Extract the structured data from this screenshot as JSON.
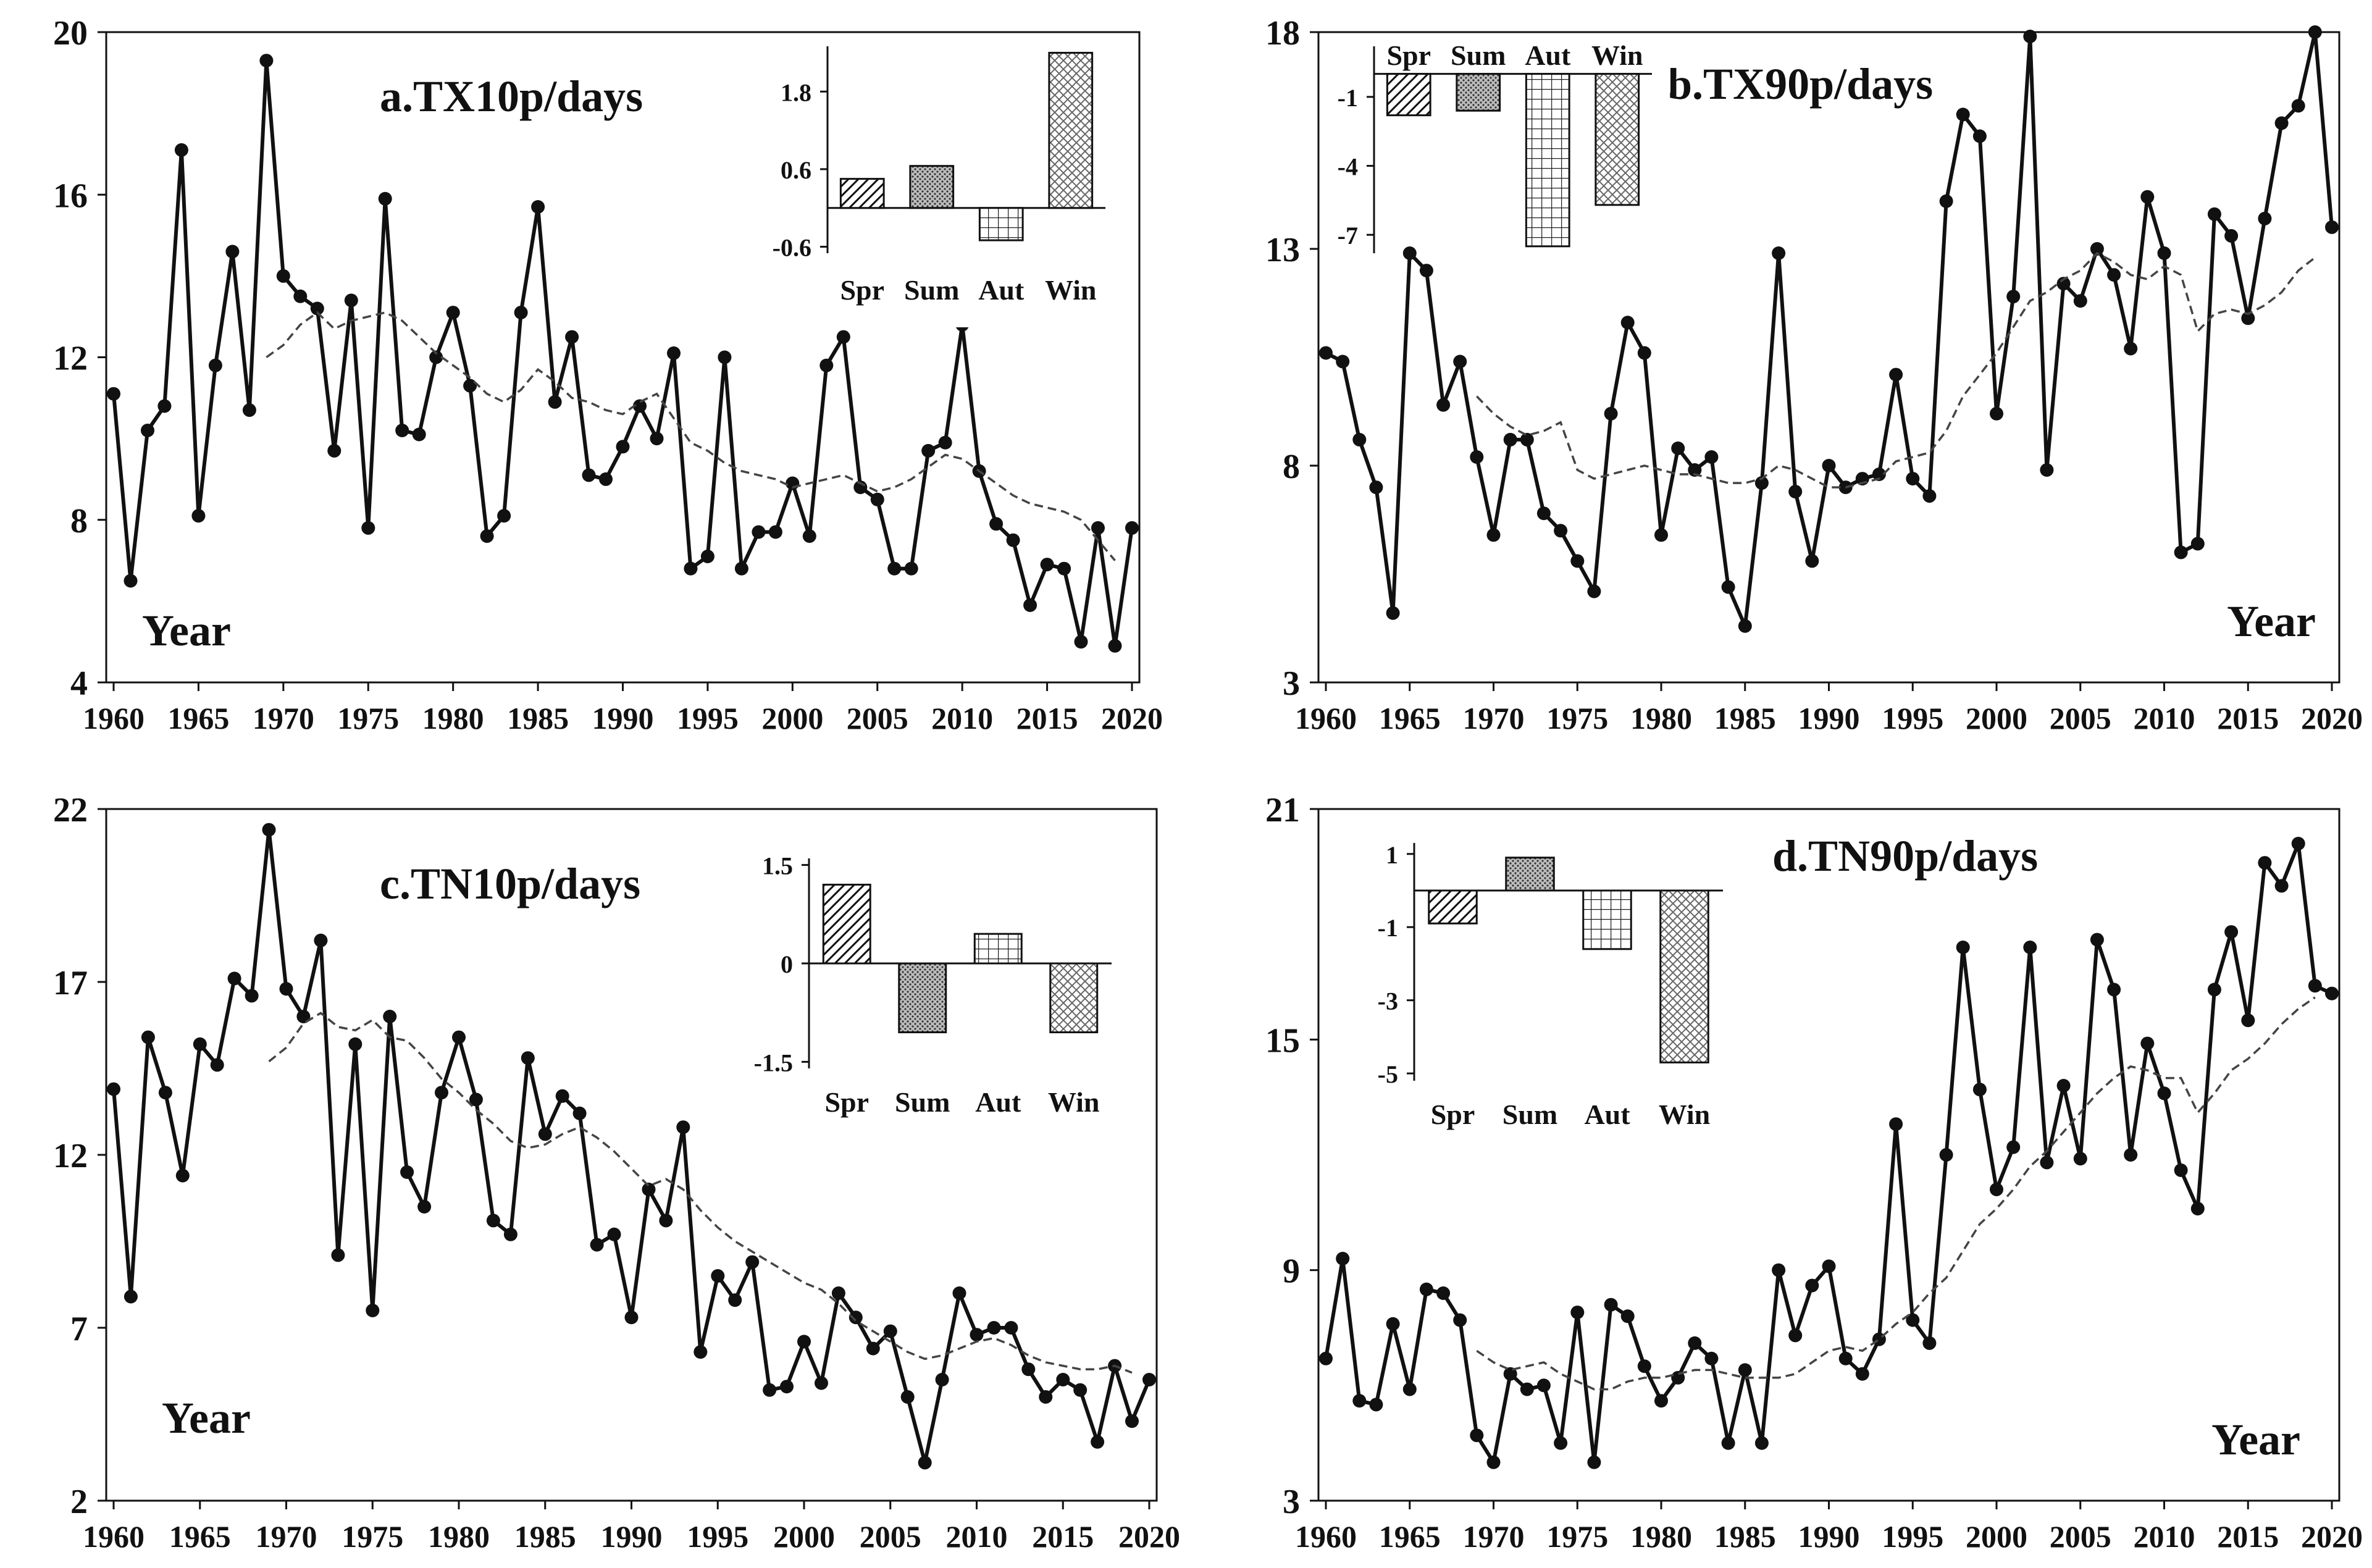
{
  "chart_data": [
    {
      "id": "a",
      "type": "line",
      "title": "a.TX10p/days",
      "xlabel": "Year",
      "xlim": [
        1960,
        2020
      ],
      "ylim": [
        4,
        20
      ],
      "yticks": [
        4,
        8,
        12,
        16,
        20
      ],
      "xticks": [
        1960,
        1965,
        1970,
        1975,
        1980,
        1985,
        1990,
        1995,
        2000,
        2005,
        2010,
        2015,
        2020
      ],
      "series": [
        {
          "style": "solid-markers",
          "x_start": 1960,
          "values": [
            11.1,
            6.5,
            10.2,
            10.8,
            17.1,
            8.1,
            11.8,
            14.6,
            10.7,
            19.3,
            14.0,
            13.5,
            13.2,
            9.7,
            13.4,
            7.8,
            15.9,
            10.2,
            10.1,
            12.0,
            13.1,
            11.3,
            7.6,
            8.1,
            13.1,
            15.7,
            10.9,
            12.5,
            9.1,
            9.0,
            9.8,
            10.8,
            10.0,
            12.1,
            6.8,
            7.1,
            12.0,
            6.8,
            7.7,
            7.7,
            8.9,
            7.6,
            11.8,
            12.5,
            8.8,
            8.5,
            6.8,
            6.8,
            9.7,
            9.9,
            12.8,
            9.2,
            7.9,
            7.5,
            5.9,
            6.9,
            6.8,
            5.0,
            7.8,
            4.9,
            7.8
          ]
        },
        {
          "style": "dashed",
          "x_start": 1969,
          "values": [
            12.0,
            12.3,
            12.8,
            13.1,
            12.7,
            12.9,
            13.0,
            13.1,
            12.9,
            12.5,
            12.1,
            11.8,
            11.5,
            11.1,
            10.9,
            11.2,
            11.7,
            11.4,
            11.0,
            10.9,
            10.7,
            10.6,
            10.9,
            11.1,
            10.5,
            9.9,
            9.7,
            9.4,
            9.2,
            9.1,
            9.0,
            8.8,
            8.9,
            9.0,
            9.1,
            8.9,
            8.7,
            8.8,
            9.0,
            9.3,
            9.6,
            9.5,
            9.2,
            8.9,
            8.6,
            8.4,
            8.3,
            8.2,
            8.0,
            7.5,
            7.0
          ]
        }
      ],
      "inset": {
        "categories": [
          "Spr",
          "Sum",
          "Aut",
          "Win"
        ],
        "values": [
          0.45,
          0.65,
          -0.5,
          2.4
        ],
        "yticks": [
          -0.6,
          0.6,
          1.8
        ],
        "ytick_labels": [
          "-0.6",
          "0.6",
          "1.8"
        ],
        "ylim": [
          -0.7,
          2.5
        ],
        "hatches": [
          "diag",
          "dots",
          "grid",
          "lattice"
        ],
        "labels_position": "below"
      }
    },
    {
      "id": "b",
      "type": "line",
      "title": "b.TX90p/days",
      "xlabel": "Year",
      "xlim": [
        1960,
        2020
      ],
      "ylim": [
        3,
        18
      ],
      "yticks": [
        3,
        8,
        13,
        18
      ],
      "xticks": [
        1960,
        1965,
        1970,
        1975,
        1980,
        1985,
        1990,
        1995,
        2000,
        2005,
        2010,
        2015,
        2020
      ],
      "series": [
        {
          "style": "solid-markers",
          "x_start": 1960,
          "values": [
            10.6,
            10.4,
            8.6,
            7.5,
            4.6,
            12.9,
            12.5,
            9.4,
            10.4,
            8.2,
            6.4,
            8.6,
            8.6,
            6.9,
            6.5,
            5.8,
            5.1,
            9.2,
            11.3,
            10.6,
            6.4,
            8.4,
            7.9,
            8.2,
            5.2,
            4.3,
            7.6,
            12.9,
            7.4,
            5.8,
            8.0,
            7.5,
            7.7,
            7.8,
            10.1,
            7.7,
            7.3,
            14.1,
            16.1,
            15.6,
            9.2,
            11.9,
            17.9,
            7.9,
            12.2,
            11.8,
            13.0,
            12.4,
            10.7,
            14.2,
            12.9,
            6.0,
            6.2,
            13.8,
            13.3,
            11.4,
            13.7,
            15.9,
            16.3,
            18.0,
            13.5
          ]
        },
        {
          "style": "dashed",
          "x_start": 1969,
          "values": [
            9.6,
            9.2,
            8.9,
            8.7,
            8.8,
            9.0,
            7.9,
            7.7,
            7.8,
            7.9,
            8.0,
            7.9,
            7.8,
            7.8,
            7.7,
            7.6,
            7.6,
            7.7,
            8.0,
            7.9,
            7.7,
            7.5,
            7.5,
            7.6,
            7.7,
            8.1,
            8.2,
            8.3,
            8.8,
            9.6,
            10.1,
            10.6,
            11.2,
            11.8,
            12.0,
            12.3,
            12.5,
            12.9,
            12.7,
            12.4,
            12.3,
            12.6,
            12.4,
            11.1,
            11.5,
            11.6,
            11.5,
            11.7,
            12.0,
            12.5,
            12.8
          ]
        }
      ],
      "inset": {
        "categories": [
          "Spr",
          "Sum",
          "Aut",
          "Win"
        ],
        "values": [
          -1.8,
          -1.6,
          -7.5,
          -5.7
        ],
        "yticks": [
          -1,
          -4,
          -7
        ],
        "ytick_labels": [
          "-1",
          "-4",
          "-7"
        ],
        "ylim": [
          -7.8,
          1.2
        ],
        "hatches": [
          "diag",
          "dots",
          "grid",
          "lattice"
        ],
        "labels_position": "top"
      }
    },
    {
      "id": "c",
      "type": "line",
      "title": "c.TN10p/days",
      "xlabel": "Year",
      "xlim": [
        1960,
        2020
      ],
      "ylim": [
        2,
        22
      ],
      "yticks": [
        2,
        7,
        12,
        17,
        22
      ],
      "xticks": [
        1960,
        1965,
        1970,
        1975,
        1980,
        1985,
        1990,
        1995,
        2000,
        2005,
        2010,
        2015,
        2020
      ],
      "series": [
        {
          "style": "solid-markers",
          "x_start": 1960,
          "values": [
            13.9,
            7.9,
            15.4,
            13.8,
            11.4,
            15.2,
            14.6,
            17.1,
            16.6,
            21.4,
            16.8,
            16.0,
            18.2,
            9.1,
            15.2,
            7.5,
            16.0,
            11.5,
            10.5,
            13.8,
            15.4,
            13.6,
            10.1,
            9.7,
            14.8,
            12.6,
            13.7,
            13.2,
            9.4,
            9.7,
            7.3,
            11.0,
            10.1,
            12.8,
            6.3,
            8.5,
            7.8,
            8.9,
            5.2,
            5.3,
            6.6,
            5.4,
            8.0,
            7.3,
            6.4,
            6.9,
            5.0,
            3.1,
            5.5,
            8.0,
            6.8,
            7.0,
            7.0,
            5.8,
            5.0,
            5.5,
            5.2,
            3.7,
            5.9,
            4.3,
            5.5
          ]
        },
        {
          "style": "dashed",
          "x_start": 1969,
          "values": [
            14.7,
            15.1,
            15.8,
            16.1,
            15.7,
            15.6,
            15.9,
            15.4,
            15.3,
            14.8,
            14.2,
            13.8,
            13.3,
            12.9,
            12.4,
            12.2,
            12.3,
            12.6,
            12.8,
            12.5,
            12.1,
            11.6,
            11.1,
            11.3,
            11.0,
            10.4,
            9.9,
            9.5,
            9.2,
            8.9,
            8.6,
            8.3,
            8.1,
            7.7,
            7.2,
            6.9,
            6.6,
            6.3,
            6.1,
            6.2,
            6.4,
            6.6,
            6.7,
            6.5,
            6.2,
            6.0,
            5.9,
            5.8,
            5.8,
            5.9,
            5.7
          ]
        }
      ],
      "inset": {
        "categories": [
          "Spr",
          "Sum",
          "Aut",
          "Win"
        ],
        "values": [
          1.2,
          -1.05,
          0.45,
          -1.05
        ],
        "yticks": [
          -1.5,
          0,
          1.5
        ],
        "ytick_labels": [
          "-1.5",
          "0",
          "1.5"
        ],
        "ylim": [
          -1.6,
          1.6
        ],
        "hatches": [
          "diag",
          "dots",
          "grid",
          "lattice"
        ],
        "labels_position": "below"
      }
    },
    {
      "id": "d",
      "type": "line",
      "title": "d.TN90p/days",
      "xlabel": "Year",
      "xlim": [
        1960,
        2020
      ],
      "ylim": [
        3,
        21
      ],
      "yticks": [
        3,
        9,
        15,
        21
      ],
      "xticks": [
        1960,
        1965,
        1970,
        1975,
        1980,
        1985,
        1990,
        1995,
        2000,
        2005,
        2010,
        2015,
        2020
      ],
      "series": [
        {
          "style": "solid-markers",
          "x_start": 1960,
          "values": [
            6.7,
            9.3,
            5.6,
            5.5,
            7.6,
            5.9,
            8.5,
            8.4,
            7.7,
            4.7,
            4.0,
            6.3,
            5.9,
            6.0,
            4.5,
            7.9,
            4.0,
            8.1,
            7.8,
            6.5,
            5.6,
            6.2,
            7.1,
            6.7,
            4.5,
            6.4,
            4.5,
            9.0,
            7.3,
            8.6,
            9.1,
            6.7,
            6.3,
            7.2,
            12.8,
            7.7,
            7.1,
            12.0,
            17.4,
            13.7,
            11.1,
            12.2,
            17.4,
            11.8,
            13.8,
            11.9,
            17.6,
            16.3,
            12.0,
            14.9,
            13.6,
            11.6,
            10.6,
            16.3,
            17.8,
            15.5,
            19.6,
            19.0,
            20.1,
            16.4,
            16.2
          ]
        },
        {
          "style": "dashed",
          "x_start": 1969,
          "values": [
            6.9,
            6.6,
            6.4,
            6.5,
            6.6,
            6.3,
            6.1,
            5.9,
            5.9,
            6.1,
            6.2,
            6.2,
            6.3,
            6.4,
            6.4,
            6.3,
            6.2,
            6.2,
            6.2,
            6.3,
            6.6,
            6.9,
            7.0,
            6.9,
            7.2,
            7.6,
            7.9,
            8.4,
            8.8,
            9.5,
            10.2,
            10.6,
            11.1,
            11.7,
            12.1,
            12.6,
            13.1,
            13.6,
            14.0,
            14.3,
            14.2,
            14.0,
            14.0,
            13.1,
            13.6,
            14.2,
            14.5,
            14.9,
            15.4,
            15.8,
            16.1
          ]
        }
      ],
      "inset": {
        "categories": [
          "Spr",
          "Sum",
          "Aut",
          "Win"
        ],
        "values": [
          -0.9,
          0.9,
          -1.6,
          -4.7
        ],
        "yticks": [
          1,
          -1,
          -3,
          -5
        ],
        "ytick_labels": [
          "1",
          "-1",
          "-3",
          "-5"
        ],
        "ylim": [
          -5.2,
          1.3
        ],
        "hatches": [
          "diag",
          "dots",
          "grid",
          "lattice"
        ],
        "labels_position": "below"
      }
    }
  ]
}
